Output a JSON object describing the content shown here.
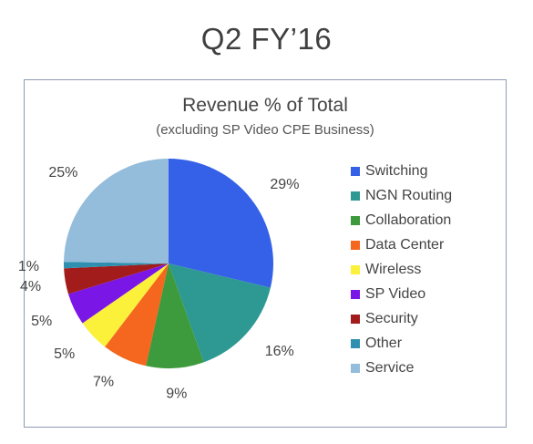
{
  "page": {
    "title": "Q2 FY’16"
  },
  "chart_data": {
    "type": "pie",
    "title": "Revenue % of Total",
    "subtitle": "(excluding SP Video CPE Business)",
    "legend_position": "right",
    "slices": [
      {
        "name": "Switching",
        "value": 29,
        "label": "29%",
        "color": "#3561e8"
      },
      {
        "name": "NGN Routing",
        "value": 16,
        "label": "16%",
        "color": "#2e9993"
      },
      {
        "name": "Collaboration",
        "value": 9,
        "label": "9%",
        "color": "#3d9a3d"
      },
      {
        "name": "Data Center",
        "value": 7,
        "label": "7%",
        "color": "#f5661e"
      },
      {
        "name": "Wireless",
        "value": 5,
        "label": "5%",
        "color": "#fbf03a"
      },
      {
        "name": "SP Video",
        "value": 5,
        "label": "5%",
        "color": "#7a16e6"
      },
      {
        "name": "Security",
        "value": 4,
        "label": "4%",
        "color": "#a31c1c"
      },
      {
        "name": "Other",
        "value": 1,
        "label": "1%",
        "color": "#2f8fb0"
      },
      {
        "name": "Service",
        "value": 25,
        "label": "25%",
        "color": "#94bcdb"
      }
    ]
  }
}
